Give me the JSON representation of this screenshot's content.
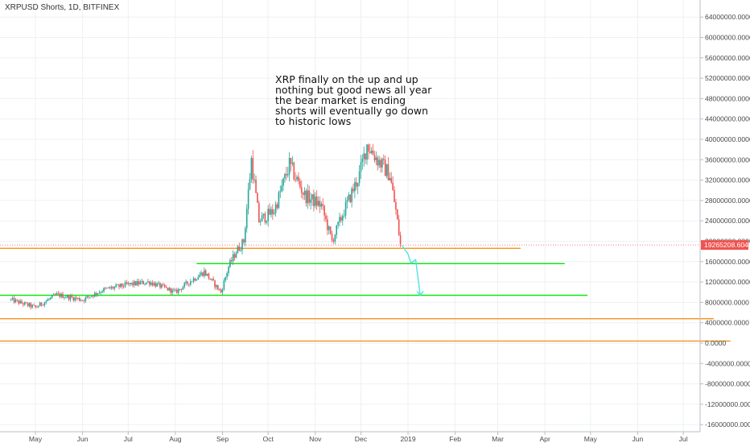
{
  "chart_data": {
    "type": "candlestick",
    "title": "XRPUSD Shorts, 1D, BITFINEX",
    "ylim": [
      -16000000,
      66000000
    ],
    "grid": true,
    "y_ticks": [
      "64000000.0000",
      "60000000.0000",
      "56000000.0000",
      "52000000.0000",
      "48000000.0000",
      "44000000.0000",
      "40000000.0000",
      "36000000.0000",
      "32000000.0000",
      "28000000.0000",
      "24000000.0000",
      "20000000.0000",
      "16000000.0000",
      "12000000.0000",
      "8000000.0000",
      "4000000.0000",
      "0.0000",
      "-4000000.0000",
      "-8000000.0000",
      "-12000000.0000",
      "-16000000.0000"
    ],
    "y_tick_values": [
      64000000,
      60000000,
      56000000,
      52000000,
      48000000,
      44000000,
      40000000,
      36000000,
      32000000,
      28000000,
      24000000,
      20000000,
      16000000,
      12000000,
      8000000,
      4000000,
      0,
      -4000000,
      -8000000,
      -12000000,
      -16000000
    ],
    "x_ticks": [
      "May",
      "Jun",
      "Jul",
      "Aug",
      "Sep",
      "Oct",
      "Nov",
      "Dec",
      "2019",
      "Feb",
      "Mar",
      "Apr",
      "May",
      "Jun",
      "Jul"
    ],
    "last_price": "19265208.6041",
    "last_price_value": 19265208.6041,
    "annotation": "XRP finally on the up and up\nnothing but good news all year\nthe bear market is ending\nshorts will eventually go down\nto historic lows",
    "waypoints": [
      {
        "date": "2018-04-15",
        "price": 8500000
      },
      {
        "date": "2018-05-01",
        "price": 7000000
      },
      {
        "date": "2018-05-15",
        "price": 9500000
      },
      {
        "date": "2018-06-01",
        "price": 8500000
      },
      {
        "date": "2018-06-15",
        "price": 10500000
      },
      {
        "date": "2018-07-01",
        "price": 11500000
      },
      {
        "date": "2018-07-15",
        "price": 12000000
      },
      {
        "date": "2018-08-01",
        "price": 10000000
      },
      {
        "date": "2018-08-10",
        "price": 12000000
      },
      {
        "date": "2018-08-20",
        "price": 14000000
      },
      {
        "date": "2018-08-31",
        "price": 10000000
      },
      {
        "date": "2018-09-05",
        "price": 15000000
      },
      {
        "date": "2018-09-10",
        "price": 18000000
      },
      {
        "date": "2018-09-15",
        "price": 20000000
      },
      {
        "date": "2018-09-20",
        "price": 36000000
      },
      {
        "date": "2018-09-25",
        "price": 24000000
      },
      {
        "date": "2018-10-05",
        "price": 26000000
      },
      {
        "date": "2018-10-15",
        "price": 35000000
      },
      {
        "date": "2018-10-25",
        "price": 29000000
      },
      {
        "date": "2018-11-05",
        "price": 27000000
      },
      {
        "date": "2018-11-12",
        "price": 20000000
      },
      {
        "date": "2018-11-20",
        "price": 26000000
      },
      {
        "date": "2018-11-30",
        "price": 33000000
      },
      {
        "date": "2018-12-05",
        "price": 39000000
      },
      {
        "date": "2018-12-12",
        "price": 36000000
      },
      {
        "date": "2018-12-20",
        "price": 33000000
      },
      {
        "date": "2018-12-24",
        "price": 26000000
      },
      {
        "date": "2018-12-27",
        "price": 19300000
      }
    ],
    "hlines": [
      {
        "price": 18600000,
        "color": "#f7931a",
        "start": "2018-04-01",
        "end": "2019-03-16"
      },
      {
        "price": 15600000,
        "color": "#00e600",
        "start": "2018-08-15",
        "end": "2019-04-14"
      },
      {
        "price": 9400000,
        "color": "#00e600",
        "start": "2018-04-01",
        "end": "2019-04-29"
      },
      {
        "price": 4800000,
        "color": "#f7931a",
        "start": "2018-04-01",
        "end": "2019-07-21"
      },
      {
        "price": 400000,
        "color": "#f7931a",
        "start": "2018-04-01",
        "end": "2019-08-01"
      }
    ],
    "projection": [
      {
        "date": "2018-12-28",
        "price": 19200000
      },
      {
        "date": "2019-01-01",
        "price": 17500000
      },
      {
        "date": "2019-01-03",
        "price": 15700000
      },
      {
        "date": "2019-01-06",
        "price": 16400000
      },
      {
        "date": "2019-01-09",
        "price": 9400000
      }
    ],
    "colors": {
      "up": "#26a69a",
      "down": "#ef5350",
      "last_price": "#ef5350",
      "projection": "#4fe3e3",
      "grid": "#eef0f3",
      "axis_text": "#4a4a4a"
    }
  }
}
